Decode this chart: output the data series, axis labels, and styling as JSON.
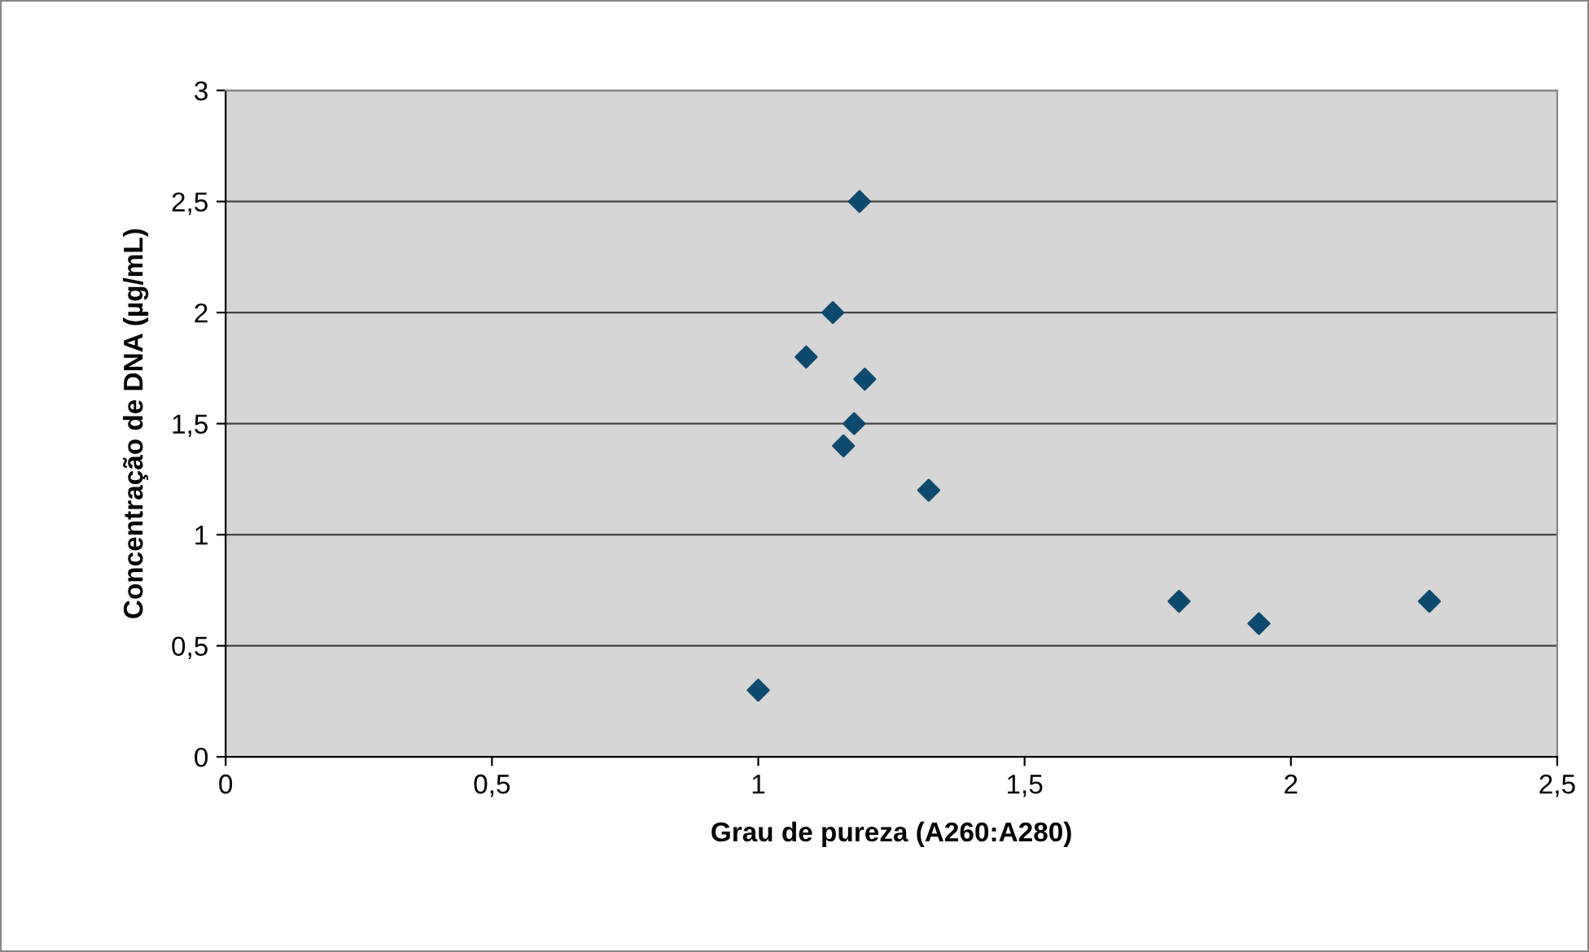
{
  "chart_data": {
    "type": "scatter",
    "xlabel": "Grau de pureza (A260:A280)",
    "ylabel": "Concentração de DNA (µg/mL)",
    "x": [
      1.0,
      1.09,
      1.14,
      1.19,
      1.2,
      1.18,
      1.16,
      1.32,
      1.79,
      1.94,
      2.26
    ],
    "series": [
      {
        "color": "#0e4a6e",
        "values": [
          0.3,
          1.8,
          2.0,
          2.5,
          1.7,
          1.5,
          1.4,
          1.2,
          0.7,
          0.6,
          0.7
        ]
      }
    ],
    "xlim": [
      0,
      2.5
    ],
    "ylim": [
      0,
      3
    ],
    "xticks": [
      {
        "value": 0,
        "label": "0"
      },
      {
        "value": 0.5,
        "label": "0,5"
      },
      {
        "value": 1,
        "label": "1"
      },
      {
        "value": 1.5,
        "label": "1,5"
      },
      {
        "value": 2,
        "label": "2"
      },
      {
        "value": 2.5,
        "label": "2,5"
      }
    ],
    "yticks": [
      {
        "value": 0,
        "label": "0"
      },
      {
        "value": 0.5,
        "label": "0,5"
      },
      {
        "value": 1,
        "label": "1"
      },
      {
        "value": 1.5,
        "label": "1,5"
      },
      {
        "value": 2,
        "label": "2"
      },
      {
        "value": 2.5,
        "label": "2,5"
      },
      {
        "value": 3,
        "label": "3"
      }
    ],
    "grid": "y",
    "marker": "diamond",
    "legend": false
  }
}
